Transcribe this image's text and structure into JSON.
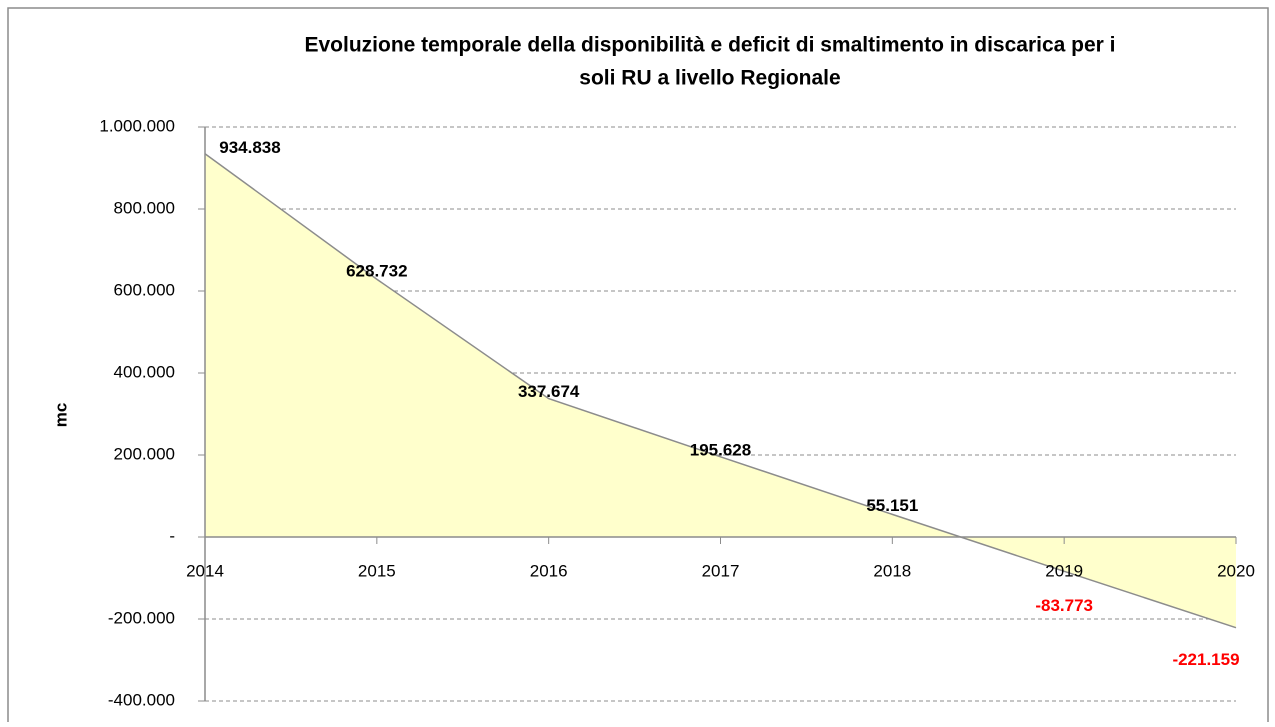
{
  "chart_data": {
    "type": "area",
    "title": [
      "Evoluzione temporale della disponibilità e deficit di smaltimento in discarica per i",
      "soli RU a livello Regionale"
    ],
    "y_label": "mc",
    "x": [
      2014,
      2015,
      2016,
      2017,
      2018,
      2019,
      2020
    ],
    "xlim": [
      2014,
      2020
    ],
    "xticks": [
      2014,
      2015,
      2016,
      2017,
      2018,
      2019,
      2020
    ],
    "values": [
      934838,
      628732,
      337674,
      195628,
      55151,
      -83773,
      -221159
    ],
    "value_labels": [
      "934.838",
      "628.732",
      "337.674",
      "195.628",
      "55.151",
      "-83.773",
      "-221.159"
    ],
    "ylim": [
      -400000,
      1000000
    ],
    "yticks": [
      {
        "value": -400000,
        "label": "-400.000"
      },
      {
        "value": -200000,
        "label": "-200.000"
      },
      {
        "value": 0,
        "label": "-"
      },
      {
        "value": 200000,
        "label": "200.000"
      },
      {
        "value": 400000,
        "label": "400.000"
      },
      {
        "value": 600000,
        "label": "600.000"
      },
      {
        "value": 800000,
        "label": "800.000"
      },
      {
        "value": 1000000,
        "label": "1.000.000"
      }
    ],
    "color": "#ffffcc",
    "line_color": "#8c8c8c",
    "label_color": "#000000",
    "negative_label_color": "#ff0000",
    "grid": true
  }
}
